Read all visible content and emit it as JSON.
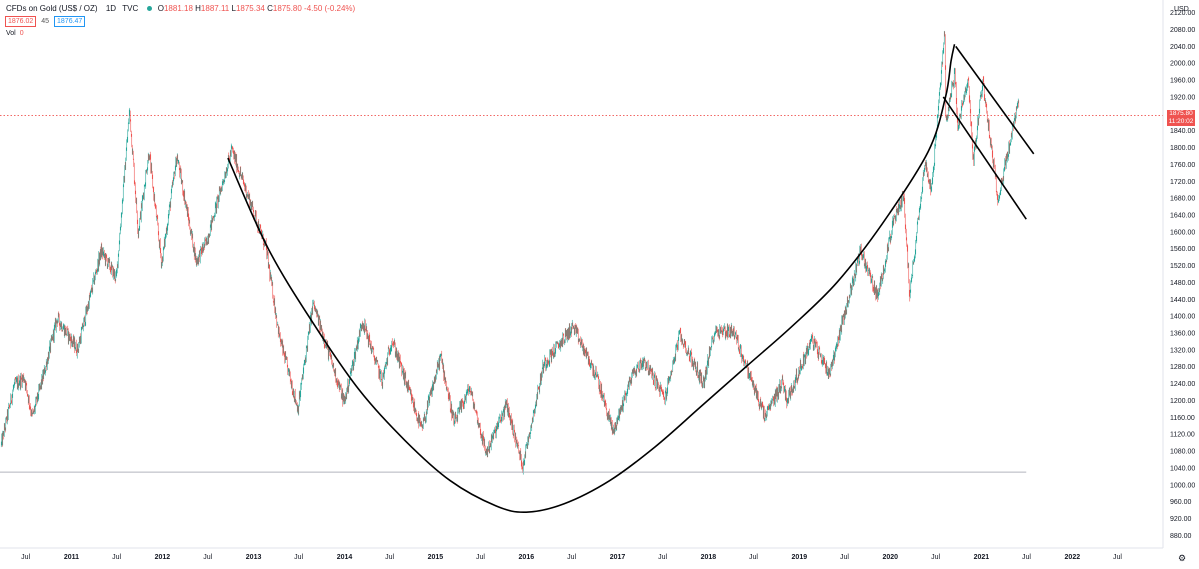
{
  "legend": {
    "symbol": "CFDs on Gold (US$ / OZ)",
    "interval": "1D",
    "source": "TVC",
    "open_label": "O",
    "open": "1881.18",
    "high_label": "H",
    "high": "1887.11",
    "low_label": "L",
    "low": "1875.34",
    "close_label": "C",
    "close": "1875.80",
    "change": "-4.50 (-0.24%)",
    "sell_price": "1876.02",
    "spread": "45",
    "buy_price": "1876.47",
    "vol_label": "Vol",
    "vol_value": "0"
  },
  "colors": {
    "up": "#26a69a",
    "down": "#ef5350",
    "axis_text": "#131722",
    "drawing": "#000000"
  },
  "chart_data": {
    "type": "candlestick",
    "title": "CFDs on Gold (US$ / OZ) 1D TVC",
    "y_unit": "USD",
    "ylim": [
      850,
      2150
    ],
    "y_ticks": [
      880,
      920,
      960,
      1000,
      1040,
      1080,
      1120,
      1160,
      1200,
      1240,
      1280,
      1320,
      1360,
      1400,
      1440,
      1480,
      1520,
      1560,
      1600,
      1640,
      1680,
      1720,
      1760,
      1800,
      1840,
      1880,
      1920,
      1960,
      2000,
      2040,
      2080,
      2120
    ],
    "y_tick_labels": [
      "880.00",
      "920.00",
      "960.00",
      "1000.00",
      "1040.00",
      "1080.00",
      "1120.00",
      "1160.00",
      "1200.00",
      "1240.00",
      "1280.00",
      "1320.00",
      "1360.00",
      "1400.00",
      "1440.00",
      "1480.00",
      "1520.00",
      "1560.00",
      "1600.00",
      "1640.00",
      "1680.00",
      "1720.00",
      "1760.00",
      "1800.00",
      "1840.00",
      "1880.00",
      "1920.00",
      "1960.00",
      "2000.00",
      "2040.00",
      "2080.00",
      "2120.00"
    ],
    "xlim": [
      "2010-03-20",
      "2022-12-31"
    ],
    "x_ticks": [
      {
        "date": "2010-07-01",
        "label": "Jul",
        "bold": false
      },
      {
        "date": "2011-01-01",
        "label": "2011",
        "bold": true
      },
      {
        "date": "2011-07-01",
        "label": "Jul",
        "bold": false
      },
      {
        "date": "2012-01-01",
        "label": "2012",
        "bold": true
      },
      {
        "date": "2012-07-01",
        "label": "Jul",
        "bold": false
      },
      {
        "date": "2013-01-01",
        "label": "2013",
        "bold": true
      },
      {
        "date": "2013-07-01",
        "label": "Jul",
        "bold": false
      },
      {
        "date": "2014-01-01",
        "label": "2014",
        "bold": true
      },
      {
        "date": "2014-07-01",
        "label": "Jul",
        "bold": false
      },
      {
        "date": "2015-01-01",
        "label": "2015",
        "bold": true
      },
      {
        "date": "2015-07-01",
        "label": "Jul",
        "bold": false
      },
      {
        "date": "2016-01-01",
        "label": "2016",
        "bold": true
      },
      {
        "date": "2016-07-01",
        "label": "Jul",
        "bold": false
      },
      {
        "date": "2017-01-01",
        "label": "2017",
        "bold": true
      },
      {
        "date": "2017-07-01",
        "label": "Jul",
        "bold": false
      },
      {
        "date": "2018-01-01",
        "label": "2018",
        "bold": true
      },
      {
        "date": "2018-07-01",
        "label": "Jul",
        "bold": false
      },
      {
        "date": "2019-01-01",
        "label": "2019",
        "bold": true
      },
      {
        "date": "2019-07-01",
        "label": "Jul",
        "bold": false
      },
      {
        "date": "2020-01-01",
        "label": "2020",
        "bold": true
      },
      {
        "date": "2020-07-01",
        "label": "Jul",
        "bold": false
      },
      {
        "date": "2021-01-01",
        "label": "2021",
        "bold": true
      },
      {
        "date": "2021-07-01",
        "label": "Jul",
        "bold": false
      },
      {
        "date": "2022-01-01",
        "label": "2022",
        "bold": true
      },
      {
        "date": "2022-07-01",
        "label": "Jul",
        "bold": false
      }
    ],
    "price_path": [
      [
        "2010-03-25",
        1095
      ],
      [
        "2010-05-15",
        1235
      ],
      [
        "2010-06-25",
        1255
      ],
      [
        "2010-07-28",
        1160
      ],
      [
        "2010-09-15",
        1270
      ],
      [
        "2010-11-05",
        1395
      ],
      [
        "2011-01-25",
        1320
      ],
      [
        "2011-03-10",
        1430
      ],
      [
        "2011-04-30",
        1555
      ],
      [
        "2011-06-30",
        1490
      ],
      [
        "2011-08-22",
        1890
      ],
      [
        "2011-09-26",
        1600
      ],
      [
        "2011-11-08",
        1790
      ],
      [
        "2011-12-29",
        1525
      ],
      [
        "2012-02-28",
        1780
      ],
      [
        "2012-05-16",
        1530
      ],
      [
        "2012-06-25",
        1575
      ],
      [
        "2012-10-05",
        1795
      ],
      [
        "2012-12-28",
        1655
      ],
      [
        "2013-02-20",
        1560
      ],
      [
        "2013-04-15",
        1350
      ],
      [
        "2013-06-28",
        1180
      ],
      [
        "2013-08-28",
        1430
      ],
      [
        "2013-12-31",
        1195
      ],
      [
        "2014-03-14",
        1390
      ],
      [
        "2014-06-01",
        1245
      ],
      [
        "2014-07-10",
        1345
      ],
      [
        "2014-11-07",
        1130
      ],
      [
        "2015-01-22",
        1305
      ],
      [
        "2015-03-17",
        1145
      ],
      [
        "2015-05-18",
        1230
      ],
      [
        "2015-07-24",
        1075
      ],
      [
        "2015-10-14",
        1190
      ],
      [
        "2015-12-17",
        1045
      ],
      [
        "2016-03-10",
        1285
      ],
      [
        "2016-07-06",
        1375
      ],
      [
        "2016-10-10",
        1255
      ],
      [
        "2016-12-15",
        1125
      ],
      [
        "2017-02-28",
        1260
      ],
      [
        "2017-04-17",
        1295
      ],
      [
        "2017-07-10",
        1205
      ],
      [
        "2017-09-08",
        1355
      ],
      [
        "2017-12-12",
        1240
      ],
      [
        "2018-01-25",
        1365
      ],
      [
        "2018-04-11",
        1365
      ],
      [
        "2018-08-16",
        1160
      ],
      [
        "2018-10-26",
        1245
      ],
      [
        "2018-11-13",
        1200
      ],
      [
        "2019-02-20",
        1345
      ],
      [
        "2019-05-02",
        1265
      ],
      [
        "2019-09-04",
        1555
      ],
      [
        "2019-11-12",
        1445
      ],
      [
        "2020-01-08",
        1610
      ],
      [
        "2020-02-24",
        1690
      ],
      [
        "2020-03-19",
        1450
      ],
      [
        "2020-05-18",
        1765
      ],
      [
        "2020-06-15",
        1700
      ],
      [
        "2020-08-07",
        2075
      ],
      [
        "2020-08-11",
        1865
      ],
      [
        "2020-09-16",
        1975
      ],
      [
        "2020-09-28",
        1850
      ],
      [
        "2020-11-09",
        1960
      ],
      [
        "2020-11-30",
        1765
      ],
      [
        "2021-01-06",
        1960
      ],
      [
        "2021-03-08",
        1680
      ],
      [
        "2021-04-15",
        1780
      ],
      [
        "2021-05-28",
        1905
      ],
      [
        "2021-06-01",
        1876
      ]
    ],
    "drawings": {
      "cup_arc": [
        [
          "2012-09-20",
          1775
        ],
        [
          "2013-03-01",
          1560
        ],
        [
          "2013-09-01",
          1380
        ],
        [
          "2014-03-01",
          1225
        ],
        [
          "2014-09-01",
          1105
        ],
        [
          "2015-03-01",
          1010
        ],
        [
          "2015-09-01",
          950
        ],
        [
          "2016-01-01",
          935
        ],
        [
          "2016-06-01",
          955
        ],
        [
          "2016-12-01",
          1010
        ],
        [
          "2017-06-01",
          1090
        ],
        [
          "2017-12-01",
          1185
        ],
        [
          "2018-06-01",
          1280
        ],
        [
          "2018-12-01",
          1375
        ],
        [
          "2019-06-01",
          1480
        ],
        [
          "2019-12-01",
          1620
        ],
        [
          "2020-06-01",
          1790
        ],
        [
          "2020-08-10",
          1920
        ],
        [
          "2020-09-01",
          2005
        ],
        [
          "2020-09-15",
          2045
        ]
      ],
      "channel_upper": [
        [
          "2020-09-20",
          2040
        ],
        [
          "2021-07-30",
          1785
        ]
      ],
      "channel_lower": [
        [
          "2020-08-01",
          1920
        ],
        [
          "2021-06-30",
          1630
        ]
      ],
      "support_line": {
        "price": 1030,
        "from": "2010-03-20",
        "to": "2021-06-30"
      },
      "current_price_line": 1875.8
    },
    "last_price": {
      "value": "1875.80",
      "countdown": "11:20:02"
    },
    "currency_label": "USD"
  }
}
